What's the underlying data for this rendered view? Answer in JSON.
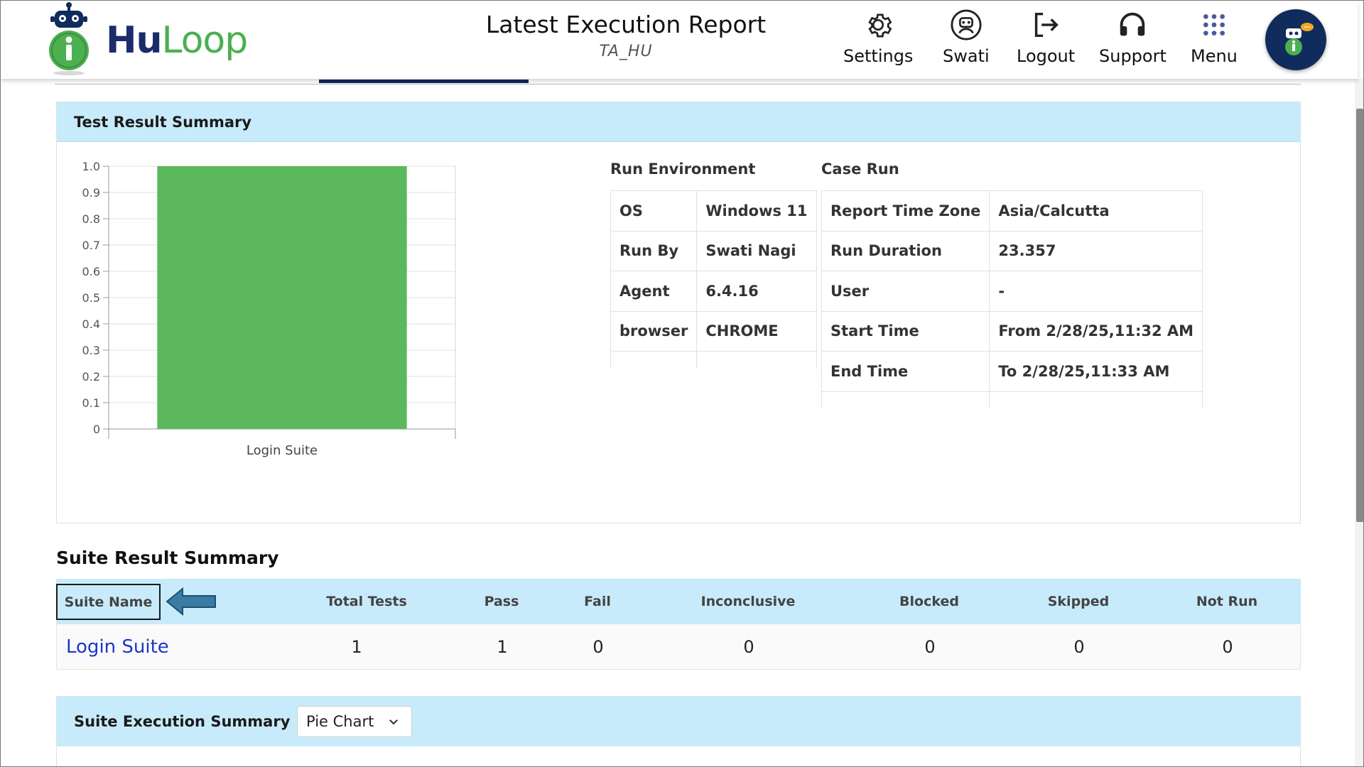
{
  "header": {
    "logo_hu": "Hu",
    "logo_loop": "Loop",
    "title": "Latest Execution Report",
    "subtitle": "TA_HU",
    "nav": [
      {
        "label": "Settings",
        "icon": "gear-icon"
      },
      {
        "label": "Swati",
        "icon": "user-robot-icon"
      },
      {
        "label": "Logout",
        "icon": "logout-icon"
      },
      {
        "label": "Support",
        "icon": "headset-icon"
      },
      {
        "label": "Menu",
        "icon": "grid-menu-icon"
      }
    ],
    "avatar_icon": "chat-bot-icon"
  },
  "test_result_summary": {
    "title": "Test Result Summary",
    "run_environment": {
      "title": "Run Environment",
      "rows": [
        {
          "key": "OS",
          "value": "Windows 11"
        },
        {
          "key": "Run By",
          "value": "Swati Nagi"
        },
        {
          "key": "Agent",
          "value": "6.4.16"
        },
        {
          "key": "browser",
          "value": "CHROME"
        }
      ]
    },
    "case_run": {
      "title": "Case Run",
      "rows": [
        {
          "key": "Report Time Zone",
          "value": "Asia/Calcutta"
        },
        {
          "key": "Run Duration",
          "value": "23.357"
        },
        {
          "key": "User",
          "value": "-"
        },
        {
          "key": "Start Time",
          "value": "From 2/28/25,11:32 AM"
        },
        {
          "key": "End Time",
          "value": "To 2/28/25,11:33 AM"
        }
      ]
    }
  },
  "chart_data": {
    "type": "bar",
    "categories": [
      "Login Suite"
    ],
    "values": [
      1.0
    ],
    "ylim": [
      0,
      1.0
    ],
    "yticks": [
      "0",
      "0.1",
      "0.2",
      "0.3",
      "0.4",
      "0.5",
      "0.6",
      "0.7",
      "0.8",
      "0.9",
      "1.0"
    ],
    "grid": true,
    "bar_color": "#5cb85c"
  },
  "suite_result": {
    "title": "Suite Result Summary",
    "columns": [
      "Suite Name",
      "Total Tests",
      "Pass",
      "Fail",
      "Inconclusive",
      "Blocked",
      "Skipped",
      "Not Run"
    ],
    "rows": [
      {
        "suite_name": "Login Suite",
        "total": "1",
        "pass": "1",
        "fail": "0",
        "inconclusive": "0",
        "blocked": "0",
        "skipped": "0",
        "not_run": "0"
      }
    ]
  },
  "suite_execution": {
    "title": "Suite Execution Summary",
    "chart_type_selected": "Pie Chart"
  },
  "colors": {
    "accent": "#0f2c5c",
    "panel_header": "#c8ebfb",
    "link": "#1a37c9",
    "logo_green": "#4caf50",
    "arrow": "#3a7ca5"
  }
}
